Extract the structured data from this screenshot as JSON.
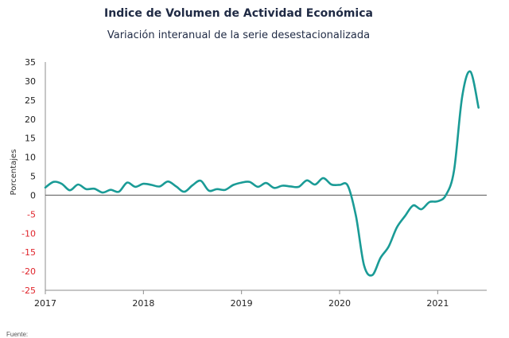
{
  "chart_data": {
    "type": "line",
    "title": "Indice de Volumen de  Actividad Económica",
    "subtitle": "Variación interanual de la serie desestacionalizada",
    "xlabel": "",
    "ylabel": "Porcentajes",
    "ylim": [
      -25,
      35
    ],
    "yticks": [
      35,
      30,
      25,
      20,
      15,
      10,
      5,
      0,
      -5,
      -10,
      -15,
      -20,
      -25
    ],
    "xlim": [
      2017,
      2021.5
    ],
    "xticks": [
      "2017",
      "2018",
      "2019",
      "2020",
      "2021"
    ],
    "grid": false,
    "legend": "none",
    "negative_tick_color": "#e0242b",
    "positive_tick_color": "#222222",
    "series": [
      {
        "color": "#1a9b96",
        "x": [
          "2017-01",
          "2017-02",
          "2017-03",
          "2017-04",
          "2017-05",
          "2017-06",
          "2017-07",
          "2017-08",
          "2017-09",
          "2017-10",
          "2017-11",
          "2017-12",
          "2018-01",
          "2018-02",
          "2018-03",
          "2018-04",
          "2018-05",
          "2018-06",
          "2018-07",
          "2018-08",
          "2018-09",
          "2018-10",
          "2018-11",
          "2018-12",
          "2019-01",
          "2019-02",
          "2019-03",
          "2019-04",
          "2019-05",
          "2019-06",
          "2019-07",
          "2019-08",
          "2019-09",
          "2019-10",
          "2019-11",
          "2019-12",
          "2020-01",
          "2020-02",
          "2020-03",
          "2020-04",
          "2020-05",
          "2020-06",
          "2020-07",
          "2020-08",
          "2020-09",
          "2020-10",
          "2020-11",
          "2020-12",
          "2021-01",
          "2021-02",
          "2021-03",
          "2021-04",
          "2021-05",
          "2021-06"
        ],
        "values": [
          2.0,
          3.5,
          3.0,
          1.3,
          2.8,
          1.6,
          1.7,
          0.7,
          1.4,
          0.9,
          3.3,
          2.2,
          3.0,
          2.7,
          2.3,
          3.6,
          2.3,
          0.9,
          2.6,
          3.8,
          1.2,
          1.6,
          1.4,
          2.7,
          3.3,
          3.5,
          2.2,
          3.2,
          1.9,
          2.5,
          2.3,
          2.2,
          3.9,
          2.8,
          4.5,
          2.8,
          2.7,
          2.5,
          -5.5,
          -18.5,
          -21.0,
          -16.5,
          -13.5,
          -8.5,
          -5.5,
          -2.7,
          -3.7,
          -1.8,
          -1.6,
          0.0,
          6.5,
          26.0,
          32.5,
          23.0
        ]
      }
    ]
  },
  "footer": {
    "text": "Fuente:"
  }
}
